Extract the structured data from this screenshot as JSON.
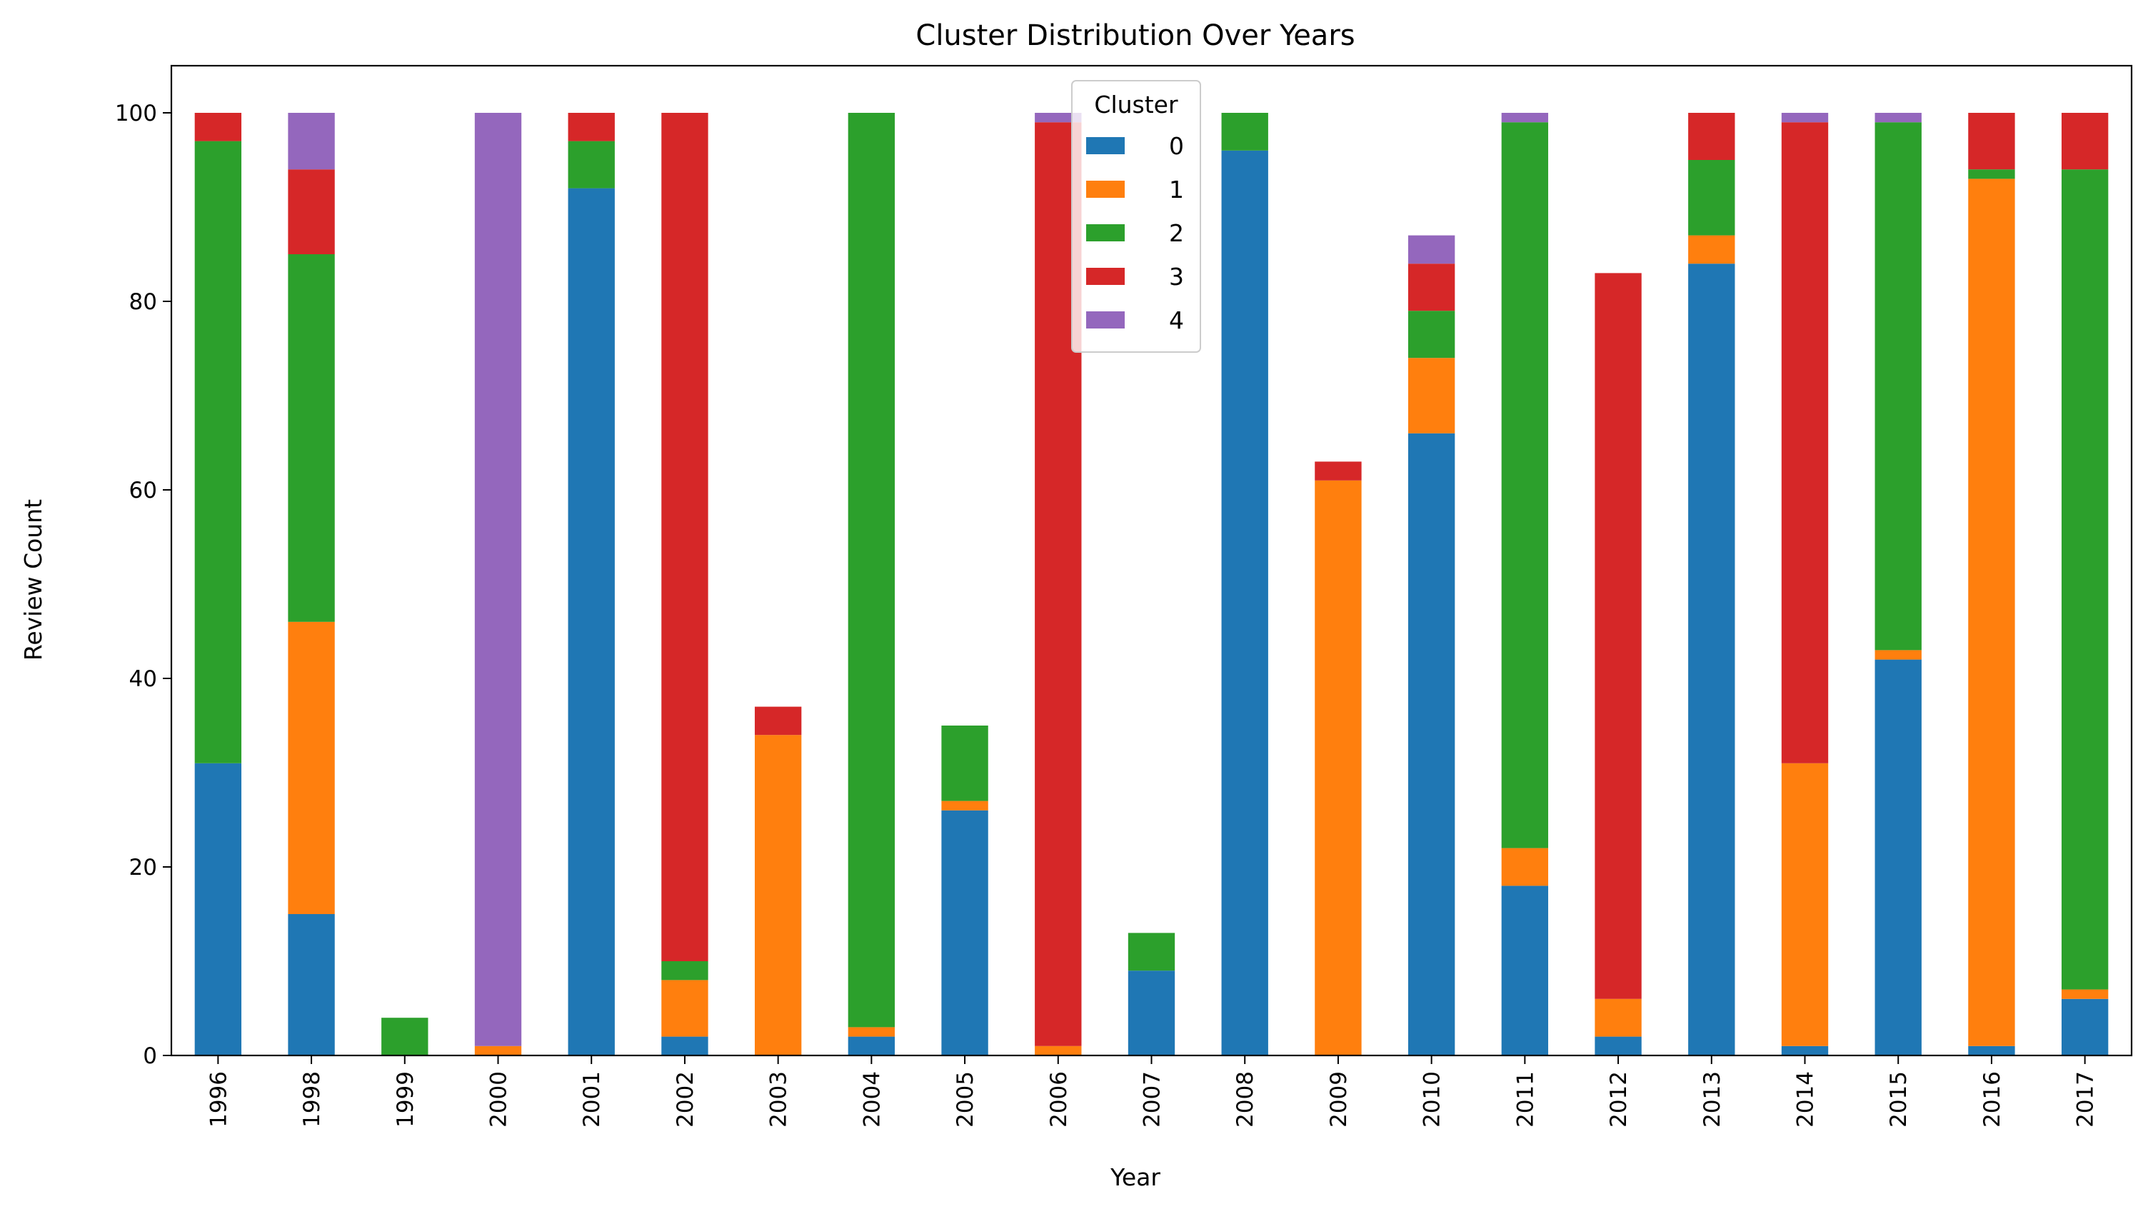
{
  "chart_data": {
    "type": "bar",
    "stacked": true,
    "title": "Cluster Distribution Over Years",
    "xlabel": "Year",
    "ylabel": "Review Count",
    "ylim": [
      0,
      105
    ],
    "yticks": [
      0,
      20,
      40,
      60,
      80,
      100
    ],
    "categories": [
      "1996",
      "1998",
      "1999",
      "2000",
      "2001",
      "2002",
      "2003",
      "2004",
      "2005",
      "2006",
      "2007",
      "2008",
      "2009",
      "2010",
      "2011",
      "2012",
      "2013",
      "2014",
      "2015",
      "2016",
      "2017"
    ],
    "legend": {
      "title": "Cluster",
      "placement": "top-center"
    },
    "series": [
      {
        "name": "0",
        "color": "#1f77b4",
        "values": [
          31,
          15,
          0,
          0,
          92,
          2,
          0,
          2,
          26,
          0,
          9,
          96,
          0,
          66,
          18,
          2,
          84,
          1,
          42,
          1,
          6
        ]
      },
      {
        "name": "1",
        "color": "#ff7f0e",
        "values": [
          0,
          31,
          0,
          1,
          0,
          6,
          34,
          1,
          1,
          1,
          0,
          0,
          61,
          8,
          4,
          4,
          3,
          30,
          1,
          92,
          1
        ]
      },
      {
        "name": "2",
        "color": "#2ca02c",
        "values": [
          66,
          39,
          4,
          0,
          5,
          2,
          0,
          97,
          8,
          0,
          4,
          4,
          0,
          5,
          77,
          0,
          8,
          0,
          56,
          1,
          87
        ]
      },
      {
        "name": "3",
        "color": "#d62728",
        "values": [
          3,
          9,
          0,
          0,
          3,
          90,
          3,
          0,
          0,
          98,
          0,
          0,
          2,
          5,
          0,
          77,
          5,
          68,
          0,
          6,
          6
        ]
      },
      {
        "name": "4",
        "color": "#9467bd",
        "values": [
          0,
          6,
          0,
          99,
          0,
          0,
          0,
          0,
          0,
          1,
          0,
          0,
          0,
          3,
          1,
          0,
          0,
          1,
          1,
          0,
          0
        ]
      }
    ]
  }
}
